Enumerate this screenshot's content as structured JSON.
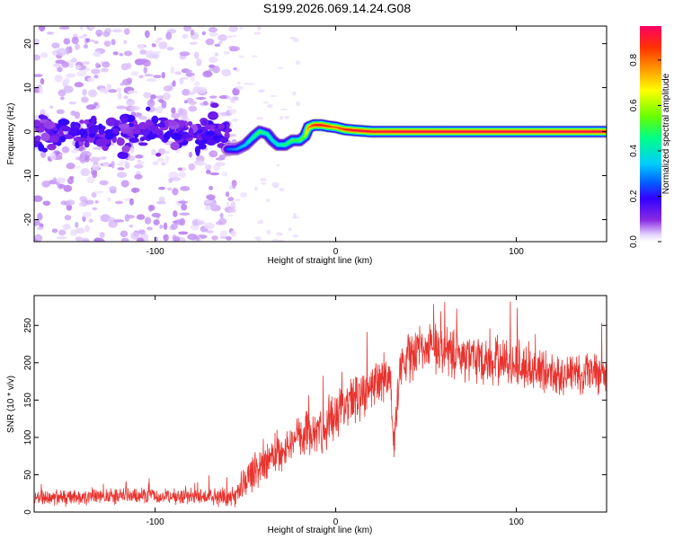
{
  "title": "S199.2026.069.14.24.G08",
  "chart_data": [
    {
      "type": "heatmap",
      "name": "spectrogram",
      "xlabel": "Height of straight line (km)",
      "ylabel": "Frequency (Hz)",
      "xlim": [
        -167,
        150
      ],
      "ylim": [
        -25,
        24
      ],
      "xticks": [
        -100,
        0,
        100
      ],
      "yticks": [
        -20,
        -10,
        0,
        10,
        20
      ],
      "xtick_labels": [
        "-100",
        "0",
        "100"
      ],
      "ytick_labels": [
        "-20",
        "-10",
        "0",
        "10",
        "20"
      ],
      "colorbar": {
        "label": "Normalized spectral amplitude",
        "range": [
          0,
          0.95
        ],
        "ticks": [
          0.0,
          0.2,
          0.4,
          0.6,
          0.8
        ],
        "tick_labels": [
          "0.0",
          "0.2",
          "0.4",
          "0.6",
          "0.8"
        ],
        "colors": [
          "#e8d8ff",
          "#8a2be2",
          "#3300ff",
          "#0066ff",
          "#00ccff",
          "#00ff88",
          "#66ff00",
          "#ffff00",
          "#ff9900",
          "#ff3300",
          "#ff0066"
        ]
      },
      "ridge": {
        "x": [
          -60,
          -55,
          -50,
          -45,
          -42,
          -38,
          -35,
          -32,
          -28,
          -24,
          -20,
          -17,
          -15,
          -12,
          -8,
          -4,
          0,
          5,
          10,
          20,
          40,
          60,
          80,
          100,
          120,
          140,
          150
        ],
        "y": [
          -4,
          -4,
          -3,
          -1,
          0,
          -0.5,
          -2,
          -3,
          -3,
          -2,
          -2,
          -1,
          1,
          1.5,
          1.5,
          1.2,
          1,
          0.5,
          0.3,
          0,
          0,
          0,
          0,
          0,
          0,
          0,
          0
        ],
        "amplitude": [
          0.25,
          0.3,
          0.35,
          0.45,
          0.5,
          0.45,
          0.4,
          0.4,
          0.45,
          0.5,
          0.5,
          0.55,
          0.75,
          0.85,
          0.9,
          0.85,
          0.8,
          0.85,
          0.9,
          0.9,
          0.92,
          0.92,
          0.92,
          0.92,
          0.92,
          0.92,
          0.92
        ]
      },
      "noise_region": {
        "x": [
          -167,
          -60
        ],
        "y": [
          -25,
          24
        ],
        "band_y": [
          -5,
          5
        ]
      }
    },
    {
      "type": "line",
      "name": "snr",
      "xlabel": "Height of straight line (km)",
      "ylabel": "SNR (10 * v/v)",
      "xlim": [
        -167,
        150
      ],
      "ylim": [
        0,
        290
      ],
      "xticks": [
        -100,
        0,
        100
      ],
      "yticks": [
        0,
        50,
        100,
        150,
        200,
        250
      ],
      "xtick_labels": [
        "-100",
        "0",
        "100"
      ],
      "ytick_labels": [
        "0",
        "50",
        "100",
        "150",
        "200",
        "250"
      ],
      "color": "#e8332e",
      "trend": {
        "x": [
          -167,
          -140,
          -100,
          -80,
          -55,
          -52,
          -45,
          -35,
          -20,
          -10,
          0,
          10,
          20,
          25,
          30,
          32,
          34,
          36,
          40,
          45,
          50,
          60,
          75,
          90,
          110,
          130,
          150
        ],
        "y": [
          18,
          20,
          22,
          20,
          20,
          35,
          55,
          75,
          100,
          110,
          125,
          150,
          175,
          180,
          185,
          75,
          150,
          195,
          210,
          215,
          220,
          215,
          205,
          200,
          190,
          185,
          185
        ]
      },
      "noise_amplitude": {
        "x": [
          -167,
          -55,
          -50,
          0,
          30,
          150
        ],
        "y": [
          12,
          14,
          30,
          40,
          40,
          35
        ]
      }
    }
  ]
}
